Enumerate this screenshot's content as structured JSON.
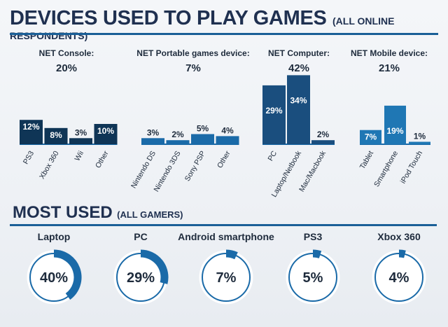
{
  "header": {
    "title": "DEVICES USED TO PLAY GAMES",
    "subtitle": "(ALL ONLINE RESPONDENTS)"
  },
  "colors": {
    "console": "#0f3556",
    "portable": "#1a6aa8",
    "computer": "#1a4e7e",
    "mobile": "#1f77b4",
    "baseline": "#1a6aa8",
    "ring_fill": "#1a6aa8",
    "ring_track": "#1a6aa8"
  },
  "chart_data": [
    {
      "type": "bar",
      "groups": [
        {
          "name": "NET Console:",
          "total": "20%",
          "categories": [
            "PS3",
            "Xbox 360",
            "Wii",
            "Other"
          ],
          "values": [
            12,
            8,
            3,
            10
          ]
        },
        {
          "name": "NET Portable games device:",
          "total": "7%",
          "categories": [
            "Nintendo DS",
            "Nintendo 3DS",
            "Sony PSP",
            "Other"
          ],
          "values": [
            3,
            2,
            5,
            4
          ]
        },
        {
          "name": "NET Computer:",
          "total": "42%",
          "categories": [
            "PC",
            "Laptop/Netbook",
            "Mac/Macbook"
          ],
          "values": [
            29,
            34,
            2
          ]
        },
        {
          "name": "NET Mobile device:",
          "total": "21%",
          "categories": [
            "Tablet",
            "Smartphone",
            "iPod Touch"
          ],
          "values": [
            7,
            19,
            1
          ]
        }
      ]
    },
    {
      "type": "pie",
      "title": "MOST USED",
      "subtitle": "(ALL GAMERS)",
      "categories": [
        "Laptop",
        "PC",
        "Android smartphone",
        "PS3",
        "Xbox 360"
      ],
      "values": [
        40,
        29,
        7,
        5,
        4
      ]
    }
  ]
}
